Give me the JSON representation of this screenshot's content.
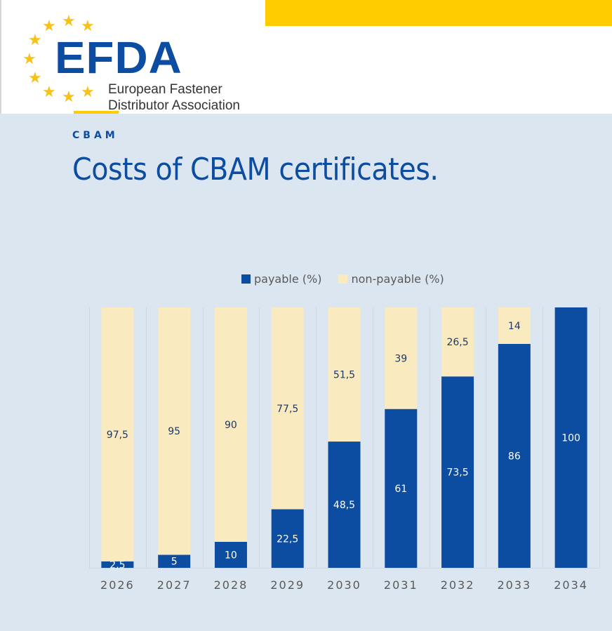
{
  "header": {
    "logo_text": "EFDA",
    "logo_subtitle_line1": "European Fastener",
    "logo_subtitle_line2": "Distributor Association",
    "brand_blue": "#0c4da2",
    "brand_yellow": "#ffcc00"
  },
  "page": {
    "kicker": "CBAM",
    "title": "Costs of CBAM certificates."
  },
  "chart_data": {
    "type": "bar",
    "stacked": true,
    "title": "",
    "xlabel": "",
    "ylabel": "",
    "ylim": [
      0,
      100
    ],
    "grid": "vertical",
    "legend_position": "top",
    "categories": [
      "2026",
      "2027",
      "2028",
      "2029",
      "2030",
      "2031",
      "2032",
      "2033",
      "2034"
    ],
    "series": [
      {
        "name": "payable (%)",
        "color": "#0c4da2",
        "label_color": "#ffffff",
        "values": [
          2.5,
          5,
          10,
          22.5,
          48.5,
          61,
          73.5,
          86,
          100
        ],
        "labels": [
          "2,5",
          "5",
          "10",
          "22,5",
          "48,5",
          "61",
          "73,5",
          "86",
          "100"
        ]
      },
      {
        "name": "non-payable (%)",
        "color": "#faeabf",
        "label_color": "#1f3864",
        "values": [
          97.5,
          95,
          90,
          77.5,
          51.5,
          39,
          26.5,
          14,
          0
        ],
        "labels": [
          "97,5",
          "95",
          "90",
          "77,5",
          "51,5",
          "39",
          "26,5",
          "14",
          ""
        ]
      }
    ]
  }
}
